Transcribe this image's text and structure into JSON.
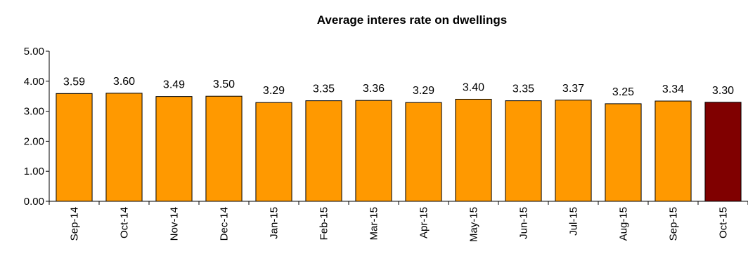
{
  "chart_data": {
    "type": "bar",
    "title": "Average interes rate on dwellings",
    "xlabel": "",
    "ylabel": "",
    "categories": [
      "Sep-14",
      "Oct-14",
      "Nov-14",
      "Dec-14",
      "Jan-15",
      "Feb-15",
      "Mar-15",
      "Apr-15",
      "May-15",
      "Jun-15",
      "Jul-15",
      "Aug-15",
      "Sep-15",
      "Oct-15"
    ],
    "values": [
      3.59,
      3.6,
      3.49,
      3.5,
      3.29,
      3.35,
      3.36,
      3.29,
      3.4,
      3.35,
      3.37,
      3.25,
      3.34,
      3.3
    ],
    "value_labels": [
      "3.59",
      "3.60",
      "3.49",
      "3.50",
      "3.29",
      "3.35",
      "3.36",
      "3.29",
      "3.40",
      "3.35",
      "3.37",
      "3.25",
      "3.34",
      "3.30"
    ],
    "ylim": [
      0,
      5
    ],
    "yticks": [
      0,
      1,
      2,
      3,
      4,
      5
    ],
    "ytick_labels": [
      "0.00",
      "1.00",
      "2.00",
      "3.00",
      "4.00",
      "5.00"
    ],
    "grid": false,
    "legend": "none",
    "colors": {
      "bar": "#FF9900",
      "highlight_bar": "#800000",
      "highlight_index": 13,
      "edge": "#000000"
    }
  }
}
